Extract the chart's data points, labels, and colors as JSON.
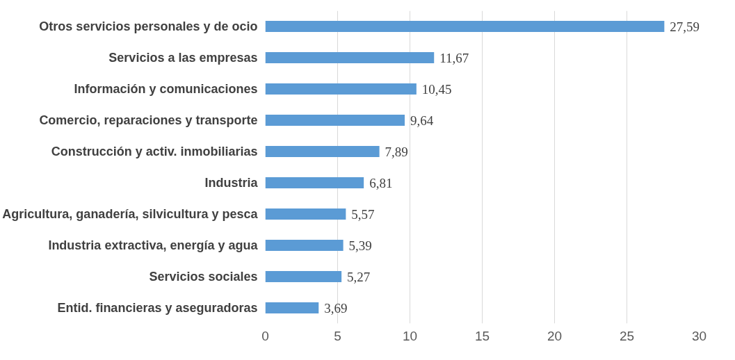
{
  "chart_data": {
    "type": "bar",
    "orientation": "horizontal",
    "categories": [
      "Otros servicios personales y de ocio",
      "Servicios a las empresas",
      "Información y comunicaciones",
      "Comercio, reparaciones y transporte",
      "Construcción y activ. inmobiliarias",
      "Industria",
      "Agricultura, ganadería, silvicultura y pesca",
      "Industria extractiva, energía y agua",
      "Servicios sociales",
      "Entid. financieras y aseguradoras"
    ],
    "values": [
      27.59,
      11.67,
      10.45,
      9.64,
      7.89,
      6.81,
      5.57,
      5.39,
      5.27,
      3.69
    ],
    "value_labels": [
      "27,59",
      "11,67",
      "10,45",
      "9,64",
      "7,89",
      "6,81",
      "5,57",
      "5,39",
      "5,27",
      "3,69"
    ],
    "color": "#5b9bd5",
    "xlim": [
      0,
      30
    ],
    "xticks": [
      0,
      5,
      10,
      15,
      20,
      25,
      30
    ],
    "grid": "x"
  }
}
